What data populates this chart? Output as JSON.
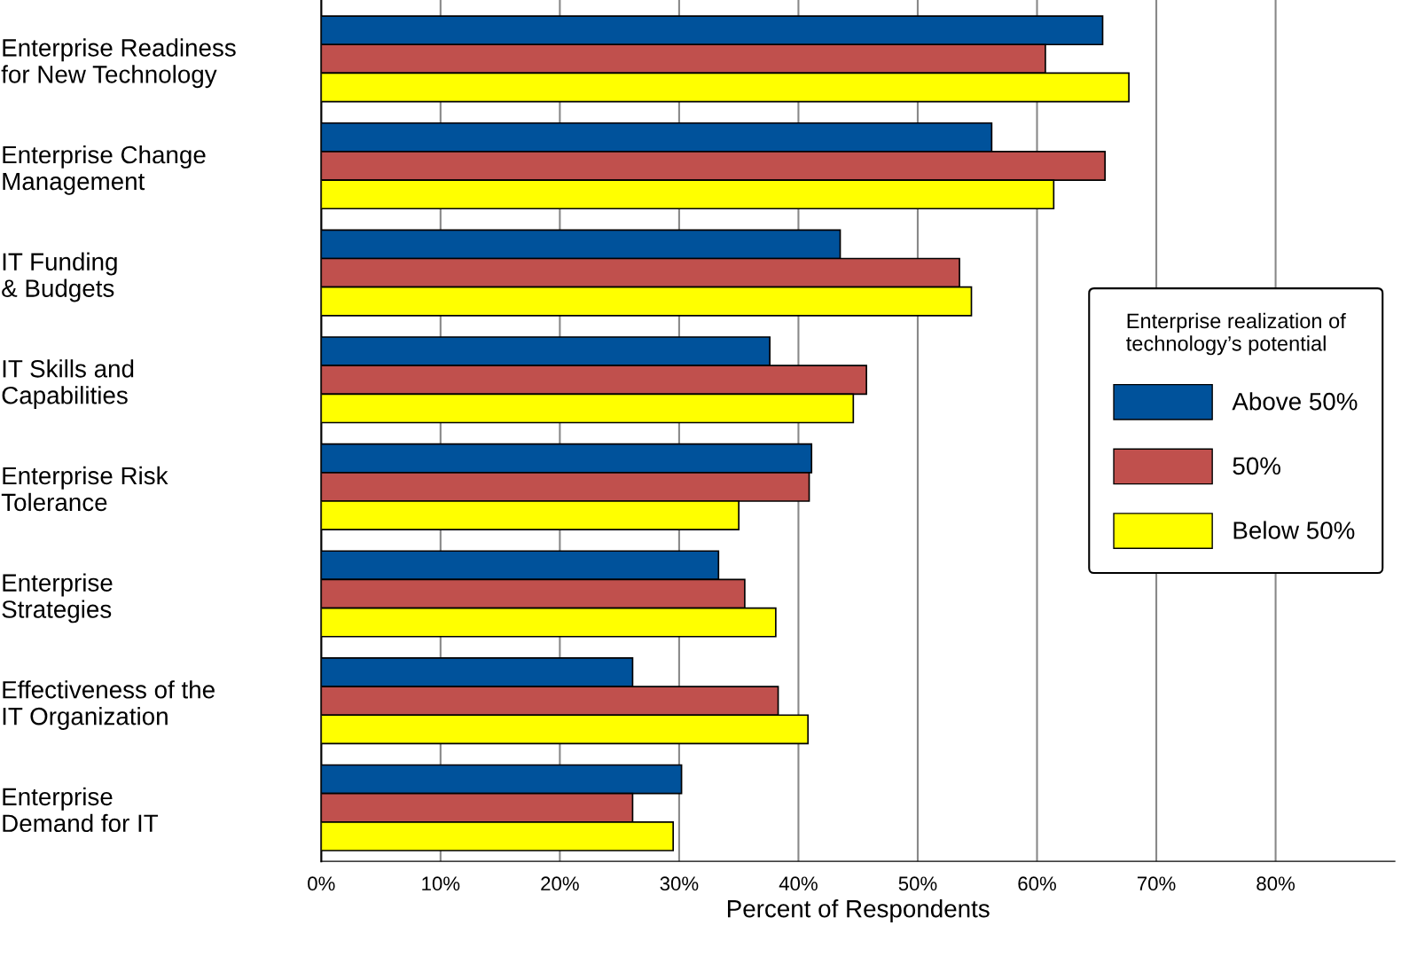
{
  "chart_data": {
    "type": "bar",
    "orientation": "horizontal",
    "categories": [
      "Enterprise Readiness\nfor New Technology",
      "Enterprise Change\nManagement",
      "IT Funding\n& Budgets",
      "IT Skills and\nCapabilities",
      "Enterprise Risk\nTolerance",
      "Enterprise\nStrategies",
      "Effectiveness of the\nIT Organization",
      "Enterprise\nDemand for IT"
    ],
    "series": [
      {
        "name": "Above 50%",
        "color": "#00529b",
        "values": [
          65.5,
          56.2,
          43.5,
          37.6,
          41.1,
          33.3,
          26.1,
          30.2
        ]
      },
      {
        "name": "50%",
        "color": "#c0504d",
        "values": [
          60.7,
          65.7,
          53.5,
          45.7,
          40.9,
          35.5,
          38.3,
          26.1
        ]
      },
      {
        "name": "Below 50%",
        "color": "#ffff00",
        "values": [
          67.7,
          61.4,
          54.5,
          44.6,
          35.0,
          38.1,
          40.8,
          29.5
        ]
      }
    ],
    "xlabel": "Percent of Respondents",
    "legend_title": "Enterprise realization of\ntechnology’s potential",
    "legend": "center right",
    "xlim": [
      0,
      90
    ],
    "xticks": [
      {
        "value": 0,
        "label": "0%"
      },
      {
        "value": 10,
        "label": "10%"
      },
      {
        "value": 20,
        "label": "20%"
      },
      {
        "value": 30,
        "label": "30%"
      },
      {
        "value": 40,
        "label": "40%"
      },
      {
        "value": 50,
        "label": "50%"
      },
      {
        "value": 60,
        "label": "60%"
      },
      {
        "value": 70,
        "label": "70%"
      },
      {
        "value": 80,
        "label": "80%"
      }
    ],
    "grid": "x"
  }
}
